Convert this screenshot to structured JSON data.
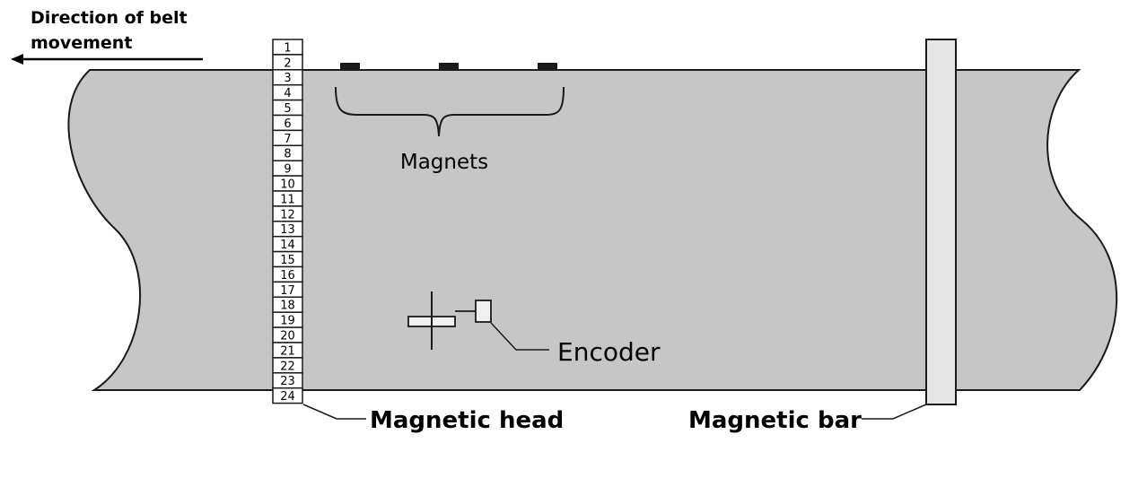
{
  "direction_label": [
    "Direction of belt",
    "movement"
  ],
  "labels": {
    "magnets": "Magnets",
    "encoder": "Encoder",
    "magnetic_head": "Magnetic head",
    "magnetic_bar": "Magnetic bar"
  },
  "head_cells": [
    "1",
    "2",
    "3",
    "4",
    "5",
    "6",
    "7",
    "8",
    "9",
    "10",
    "11",
    "12",
    "13",
    "14",
    "15",
    "16",
    "17",
    "18",
    "19",
    "20",
    "21",
    "22",
    "23",
    "24"
  ],
  "colors": {
    "belt_fill": "#c6c6c6",
    "bar_fill": "#e6e6e6",
    "stroke": "#1a1a1a"
  }
}
